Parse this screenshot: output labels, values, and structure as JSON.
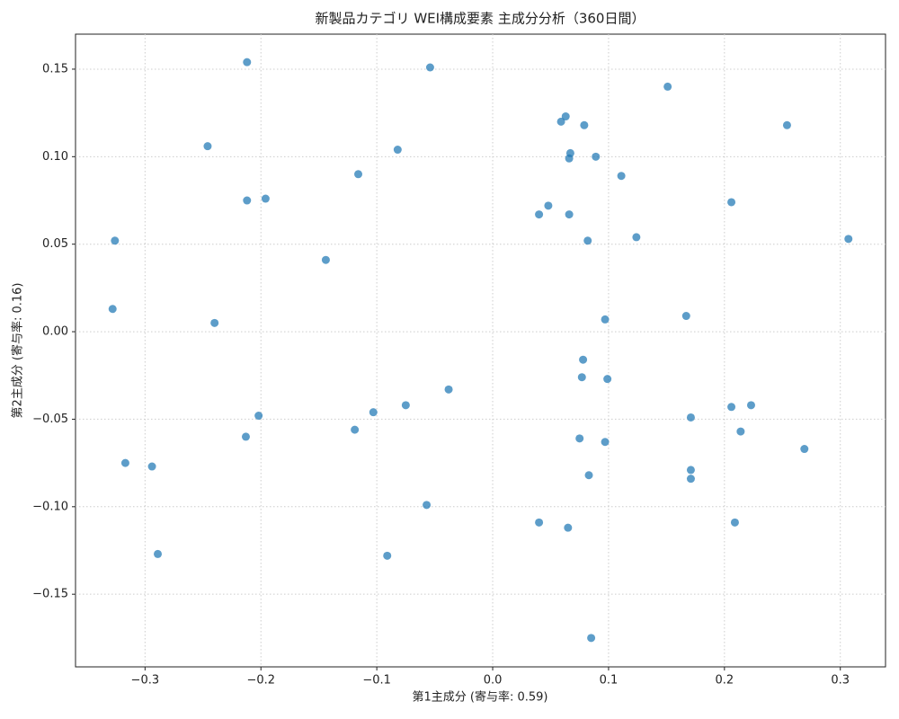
{
  "chart_data": {
    "type": "scatter",
    "title": "新製品カテゴリ WEI構成要素 主成分分析（360日間）",
    "x_label": "第1主成分 (寄与率: 0.59)",
    "y_label": "第2主成分 (寄与率: 0.16)",
    "color": "#1f77b4",
    "grid": true,
    "xlim": [
      -0.36,
      0.339
    ],
    "ylim": [
      -0.1915,
      0.17
    ],
    "xticks": [
      {
        "value": -0.3,
        "label": "−0.3"
      },
      {
        "value": -0.2,
        "label": "−0.2"
      },
      {
        "value": -0.1,
        "label": "−0.1"
      },
      {
        "value": 0,
        "label": "0.0"
      },
      0.1,
      0.2,
      0.3
    ],
    "yticks": [
      {
        "value": -0.15,
        "label": "−0.15"
      },
      {
        "value": -0.1,
        "label": "−0.10"
      },
      {
        "value": -0.05,
        "label": "−0.05"
      },
      {
        "value": 0,
        "label": "0.00"
      },
      0.05,
      {
        "value": 0.1,
        "label": "0.10"
      },
      0.15
    ],
    "x": [
      -0.212,
      -0.054,
      0.151,
      0.254,
      -0.246,
      -0.082,
      0.063,
      0.059,
      0.079,
      0.067,
      0.066,
      0.089,
      0.111,
      -0.116,
      -0.212,
      -0.196,
      0.206,
      0.048,
      0.04,
      0.066,
      0.082,
      0.124,
      -0.326,
      0.307,
      -0.144,
      -0.328,
      -0.24,
      0.097,
      0.167,
      0.078,
      0.077,
      0.099,
      -0.038,
      -0.075,
      -0.103,
      -0.202,
      0.206,
      0.223,
      0.171,
      -0.119,
      -0.213,
      0.075,
      0.097,
      0.214,
      0.269,
      -0.317,
      -0.294,
      0.083,
      0.171,
      0.171,
      -0.057,
      0.04,
      0.065,
      0.209,
      -0.289,
      -0.091,
      0.085
    ],
    "values": [
      0.154,
      0.151,
      0.14,
      0.118,
      0.106,
      0.104,
      0.123,
      0.12,
      0.118,
      0.102,
      0.099,
      0.1,
      0.089,
      0.09,
      0.075,
      0.076,
      0.074,
      0.072,
      0.067,
      0.067,
      0.052,
      0.054,
      0.052,
      0.053,
      0.041,
      0.013,
      0.005,
      0.007,
      0.009,
      -0.016,
      -0.026,
      -0.027,
      -0.033,
      -0.042,
      -0.046,
      -0.048,
      -0.043,
      -0.042,
      -0.049,
      -0.056,
      -0.06,
      -0.061,
      -0.063,
      -0.057,
      -0.067,
      -0.075,
      -0.077,
      -0.082,
      -0.079,
      -0.084,
      -0.099,
      -0.109,
      -0.112,
      -0.109,
      -0.127,
      -0.128,
      -0.175
    ]
  }
}
